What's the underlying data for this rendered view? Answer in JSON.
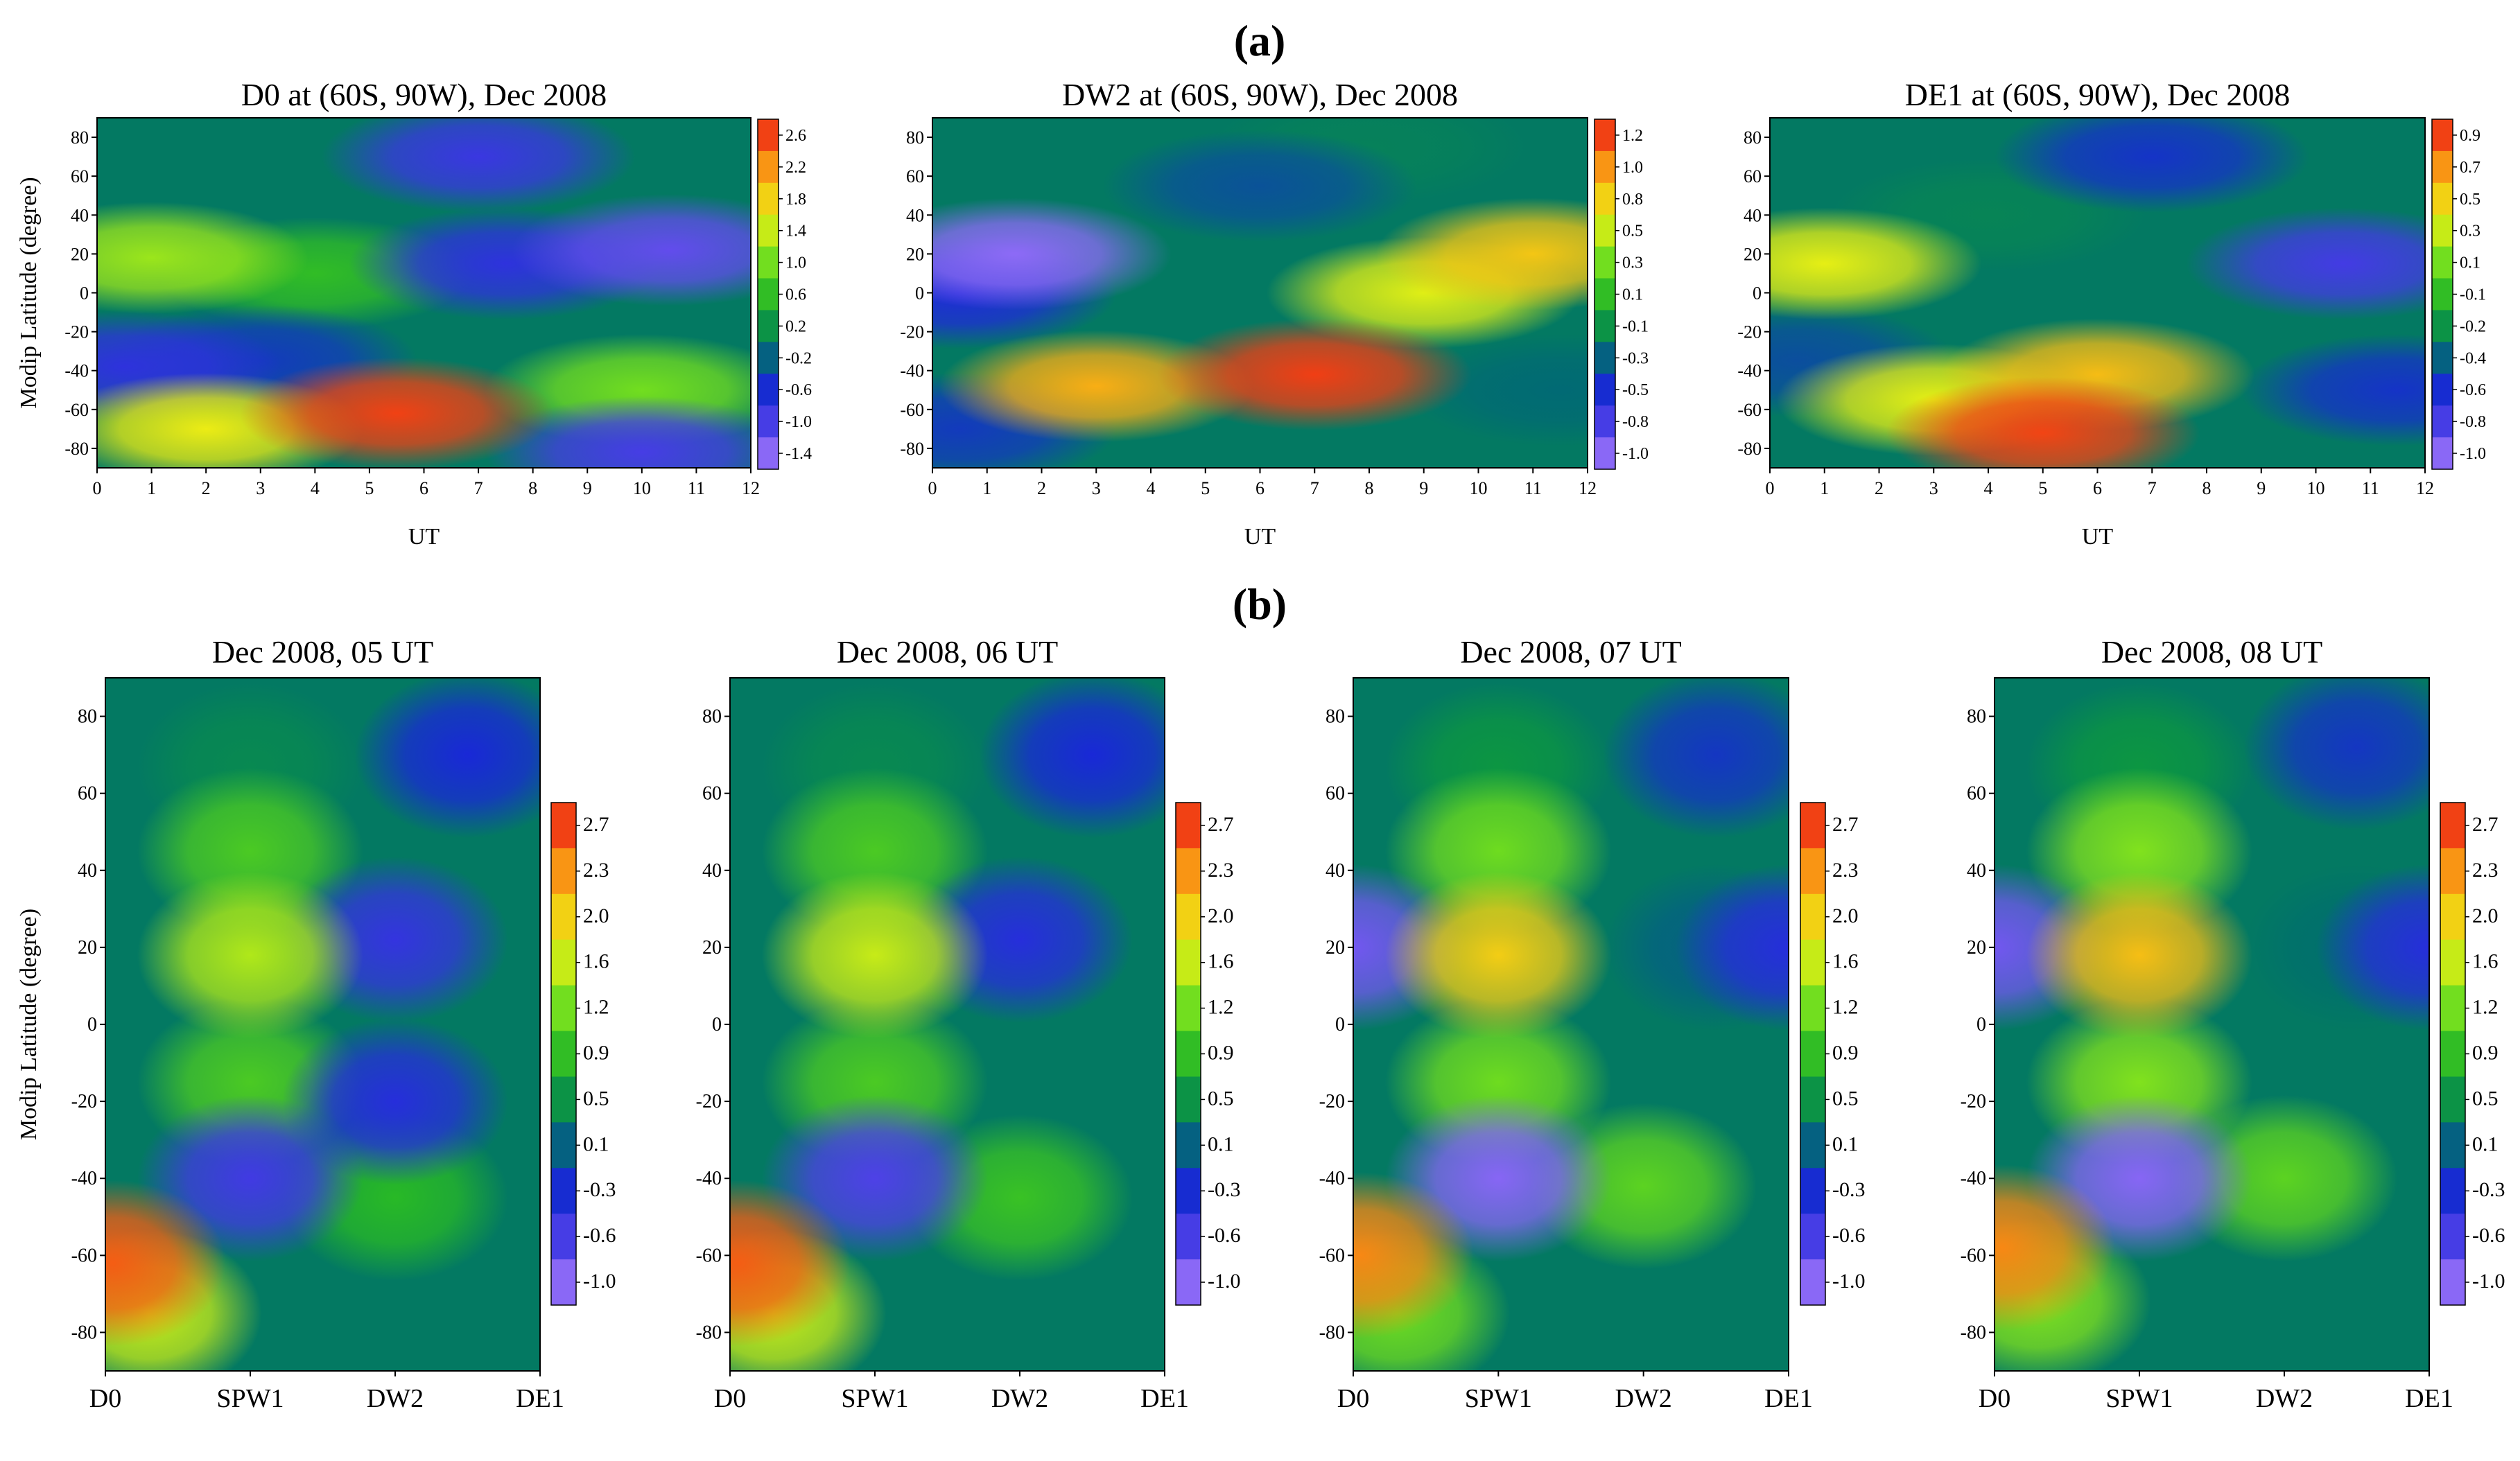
{
  "panel_labels": [
    "(a)",
    "(b)"
  ],
  "chart_data": [
    {
      "panel": "(a)",
      "type": "heatmap",
      "title": "D0 at  (60S, 90W), Dec 2008",
      "xlabel": "UT",
      "ylabel": "Modip Latitude (degree)",
      "xlim": [
        0,
        12
      ],
      "ylim": [
        -90,
        90
      ],
      "x_ticks": [
        0,
        1,
        2,
        3,
        4,
        5,
        6,
        7,
        8,
        9,
        10,
        11,
        12
      ],
      "y_ticks": [
        -80,
        -60,
        -40,
        -20,
        0,
        20,
        40,
        60,
        80
      ],
      "colorbar_ticks": [
        "2.6",
        "2.2",
        "1.8",
        "1.4",
        "1.0",
        "0.6",
        "0.2",
        "-0.2",
        "-0.6",
        "-1.0",
        "-1.4"
      ],
      "colorbar_range": [
        -1.6,
        2.8
      ],
      "features": [
        {
          "x": 5.5,
          "y": -62,
          "value": 2.6
        },
        {
          "x": 2.0,
          "y": -70,
          "value": 1.6
        },
        {
          "x": 10.0,
          "y": -50,
          "value": 1.0
        },
        {
          "x": 1.0,
          "y": 18,
          "value": 1.2
        },
        {
          "x": 4.0,
          "y": 10,
          "value": 0.6
        },
        {
          "x": 0.5,
          "y": -38,
          "value": -0.8
        },
        {
          "x": 3.0,
          "y": -35,
          "value": -0.5
        },
        {
          "x": 10.5,
          "y": 22,
          "value": -1.2
        },
        {
          "x": 7.5,
          "y": 15,
          "value": -0.8
        },
        {
          "x": 7.0,
          "y": 70,
          "value": -0.9
        },
        {
          "x": 10.0,
          "y": -82,
          "value": -1.0
        }
      ]
    },
    {
      "panel": "(a)",
      "type": "heatmap",
      "title": "DW2 at  (60S, 90W), Dec 2008",
      "xlabel": "UT",
      "ylabel": "",
      "xlim": [
        0,
        12
      ],
      "ylim": [
        -90,
        90
      ],
      "x_ticks": [
        0,
        1,
        2,
        3,
        4,
        5,
        6,
        7,
        8,
        9,
        10,
        11,
        12
      ],
      "y_ticks": [
        -80,
        -60,
        -40,
        -20,
        0,
        20,
        40,
        60,
        80
      ],
      "colorbar_ticks": [
        "1.2",
        "1.0",
        "0.8",
        "0.5",
        "0.3",
        "0.1",
        "-0.1",
        "-0.3",
        "-0.5",
        "-0.8",
        "-1.0"
      ],
      "colorbar_range": [
        -1.1,
        1.3
      ],
      "features": [
        {
          "x": 7.0,
          "y": -42,
          "value": 1.2
        },
        {
          "x": 3.0,
          "y": -48,
          "value": 0.9
        },
        {
          "x": 11.0,
          "y": 20,
          "value": 0.8
        },
        {
          "x": 9.0,
          "y": 0,
          "value": 0.6
        },
        {
          "x": 1.5,
          "y": 20,
          "value": -1.0
        },
        {
          "x": 0.5,
          "y": 0,
          "value": -0.6
        },
        {
          "x": 0.5,
          "y": -70,
          "value": -0.5
        },
        {
          "x": 6.0,
          "y": 55,
          "value": -0.4
        },
        {
          "x": 11.5,
          "y": -50,
          "value": -0.3
        },
        {
          "x": 8.0,
          "y": 75,
          "value": -0.2
        }
      ]
    },
    {
      "panel": "(a)",
      "type": "heatmap",
      "title": "DE1 at  (60S, 90W), Dec 2008",
      "xlabel": "UT",
      "ylabel": "",
      "xlim": [
        0,
        12
      ],
      "ylim": [
        -90,
        90
      ],
      "x_ticks": [
        0,
        1,
        2,
        3,
        4,
        5,
        6,
        7,
        8,
        9,
        10,
        11,
        12
      ],
      "y_ticks": [
        -80,
        -60,
        -40,
        -20,
        0,
        20,
        40,
        60,
        80
      ],
      "colorbar_ticks": [
        "0.9",
        "0.7",
        "0.5",
        "0.3",
        "0.1",
        "-0.1",
        "-0.2",
        "-0.4",
        "-0.6",
        "-0.8",
        "-1.0"
      ],
      "colorbar_range": [
        -1.1,
        1.0
      ],
      "features": [
        {
          "x": 5.0,
          "y": -72,
          "value": 0.9
        },
        {
          "x": 6.0,
          "y": -42,
          "value": 0.6
        },
        {
          "x": 1.0,
          "y": 15,
          "value": 0.4
        },
        {
          "x": 3.0,
          "y": -55,
          "value": 0.4
        },
        {
          "x": 10.5,
          "y": 15,
          "value": -0.8
        },
        {
          "x": 7.0,
          "y": 70,
          "value": -0.6
        },
        {
          "x": 0.5,
          "y": -35,
          "value": -0.5
        },
        {
          "x": 11.5,
          "y": -50,
          "value": -0.6
        },
        {
          "x": 4.0,
          "y": 40,
          "value": -0.3
        }
      ]
    },
    {
      "panel": "(b)",
      "type": "heatmap",
      "title": "Dec 2008, 05 UT",
      "xlabel": "",
      "ylabel": "Modip Latitude (degree)",
      "categories": [
        "D0",
        "SPW1",
        "DW2",
        "DE1"
      ],
      "ylim": [
        -90,
        90
      ],
      "y_ticks": [
        -80,
        -60,
        -40,
        -20,
        0,
        20,
        40,
        60,
        80
      ],
      "colorbar_ticks": [
        "2.7",
        "2.3",
        "2.0",
        "1.6",
        "1.2",
        "0.9",
        "0.5",
        "0.1",
        "-0.3",
        "-0.6",
        "-1.0"
      ],
      "colorbar_range": [
        -1.2,
        2.9
      ],
      "features": [
        {
          "x": 0.05,
          "y": -62,
          "value": 2.6
        },
        {
          "x": 0.3,
          "y": -75,
          "value": 1.6
        },
        {
          "x": 1.0,
          "y": 18,
          "value": 1.5
        },
        {
          "x": 1.0,
          "y": 45,
          "value": 1.0
        },
        {
          "x": 1.0,
          "y": -15,
          "value": 1.0
        },
        {
          "x": 2.0,
          "y": -45,
          "value": 0.8
        },
        {
          "x": 1.0,
          "y": -40,
          "value": -0.6
        },
        {
          "x": 1.0,
          "y": 67,
          "value": 0.4
        },
        {
          "x": 2.0,
          "y": 22,
          "value": -0.5
        },
        {
          "x": 2.0,
          "y": -20,
          "value": -0.4
        },
        {
          "x": 2.5,
          "y": 70,
          "value": -0.3
        }
      ]
    },
    {
      "panel": "(b)",
      "type": "heatmap",
      "title": "Dec 2008, 06 UT",
      "xlabel": "",
      "ylabel": "",
      "categories": [
        "D0",
        "SPW1",
        "DW2",
        "DE1"
      ],
      "ylim": [
        -90,
        90
      ],
      "y_ticks": [
        -80,
        -60,
        -40,
        -20,
        0,
        20,
        40,
        60,
        80
      ],
      "colorbar_ticks": [
        "2.7",
        "2.3",
        "2.0",
        "1.6",
        "1.2",
        "0.9",
        "0.5",
        "0.1",
        "-0.3",
        "-0.6",
        "-1.0"
      ],
      "colorbar_range": [
        -1.2,
        2.9
      ],
      "features": [
        {
          "x": 0.05,
          "y": -62,
          "value": 2.6
        },
        {
          "x": 0.3,
          "y": -75,
          "value": 1.6
        },
        {
          "x": 1.0,
          "y": 18,
          "value": 1.6
        },
        {
          "x": 1.0,
          "y": 45,
          "value": 1.0
        },
        {
          "x": 1.0,
          "y": -15,
          "value": 1.0
        },
        {
          "x": 2.0,
          "y": -45,
          "value": 0.9
        },
        {
          "x": 1.0,
          "y": -40,
          "value": -0.7
        },
        {
          "x": 1.0,
          "y": 67,
          "value": 0.4
        },
        {
          "x": 2.0,
          "y": 22,
          "value": -0.4
        },
        {
          "x": 2.5,
          "y": 70,
          "value": -0.3
        }
      ]
    },
    {
      "panel": "(b)",
      "type": "heatmap",
      "title": "Dec 2008, 07 UT",
      "xlabel": "",
      "ylabel": "",
      "categories": [
        "D0",
        "SPW1",
        "DW2",
        "DE1"
      ],
      "ylim": [
        -90,
        90
      ],
      "y_ticks": [
        -80,
        -60,
        -40,
        -20,
        0,
        20,
        40,
        60,
        80
      ],
      "colorbar_ticks": [
        "2.7",
        "2.3",
        "2.0",
        "1.6",
        "1.2",
        "0.9",
        "0.5",
        "0.1",
        "-0.3",
        "-0.6",
        "-1.0"
      ],
      "colorbar_range": [
        -1.2,
        2.9
      ],
      "features": [
        {
          "x": 0.05,
          "y": -60,
          "value": 2.4
        },
        {
          "x": 0.3,
          "y": -75,
          "value": 1.2
        },
        {
          "x": 1.0,
          "y": 18,
          "value": 2.0
        },
        {
          "x": 1.0,
          "y": 45,
          "value": 1.2
        },
        {
          "x": 1.0,
          "y": -15,
          "value": 1.2
        },
        {
          "x": 2.0,
          "y": -42,
          "value": 1.1
        },
        {
          "x": 1.0,
          "y": -40,
          "value": -1.0
        },
        {
          "x": 0.0,
          "y": 20,
          "value": -0.9
        },
        {
          "x": 1.0,
          "y": 67,
          "value": 0.5
        },
        {
          "x": 2.5,
          "y": 20,
          "value": 0.1
        },
        {
          "x": 3.0,
          "y": 20,
          "value": -0.4
        },
        {
          "x": 2.5,
          "y": 70,
          "value": -0.2
        }
      ]
    },
    {
      "panel": "(b)",
      "type": "heatmap",
      "title": "Dec 2008, 08 UT",
      "xlabel": "",
      "ylabel": "",
      "categories": [
        "D0",
        "SPW1",
        "DW2",
        "DE1"
      ],
      "ylim": [
        -90,
        90
      ],
      "y_ticks": [
        -80,
        -60,
        -40,
        -20,
        0,
        20,
        40,
        60,
        80
      ],
      "colorbar_ticks": [
        "2.7",
        "2.3",
        "2.0",
        "1.6",
        "1.2",
        "0.9",
        "0.5",
        "0.1",
        "-0.3",
        "-0.6",
        "-1.0"
      ],
      "colorbar_range": [
        -1.2,
        2.9
      ],
      "features": [
        {
          "x": 0.05,
          "y": -58,
          "value": 2.4
        },
        {
          "x": 0.3,
          "y": -72,
          "value": 1.3
        },
        {
          "x": 1.0,
          "y": 18,
          "value": 2.1
        },
        {
          "x": 1.0,
          "y": 45,
          "value": 1.3
        },
        {
          "x": 1.0,
          "y": -15,
          "value": 1.3
        },
        {
          "x": 2.0,
          "y": -40,
          "value": 1.1
        },
        {
          "x": 1.0,
          "y": -40,
          "value": -1.0
        },
        {
          "x": 0.0,
          "y": 20,
          "value": -0.9
        },
        {
          "x": 1.0,
          "y": 67,
          "value": 0.5
        },
        {
          "x": 2.5,
          "y": 20,
          "value": 0.2
        },
        {
          "x": 3.0,
          "y": 20,
          "value": -0.4
        },
        {
          "x": 2.5,
          "y": 72,
          "value": -0.2
        }
      ]
    }
  ]
}
